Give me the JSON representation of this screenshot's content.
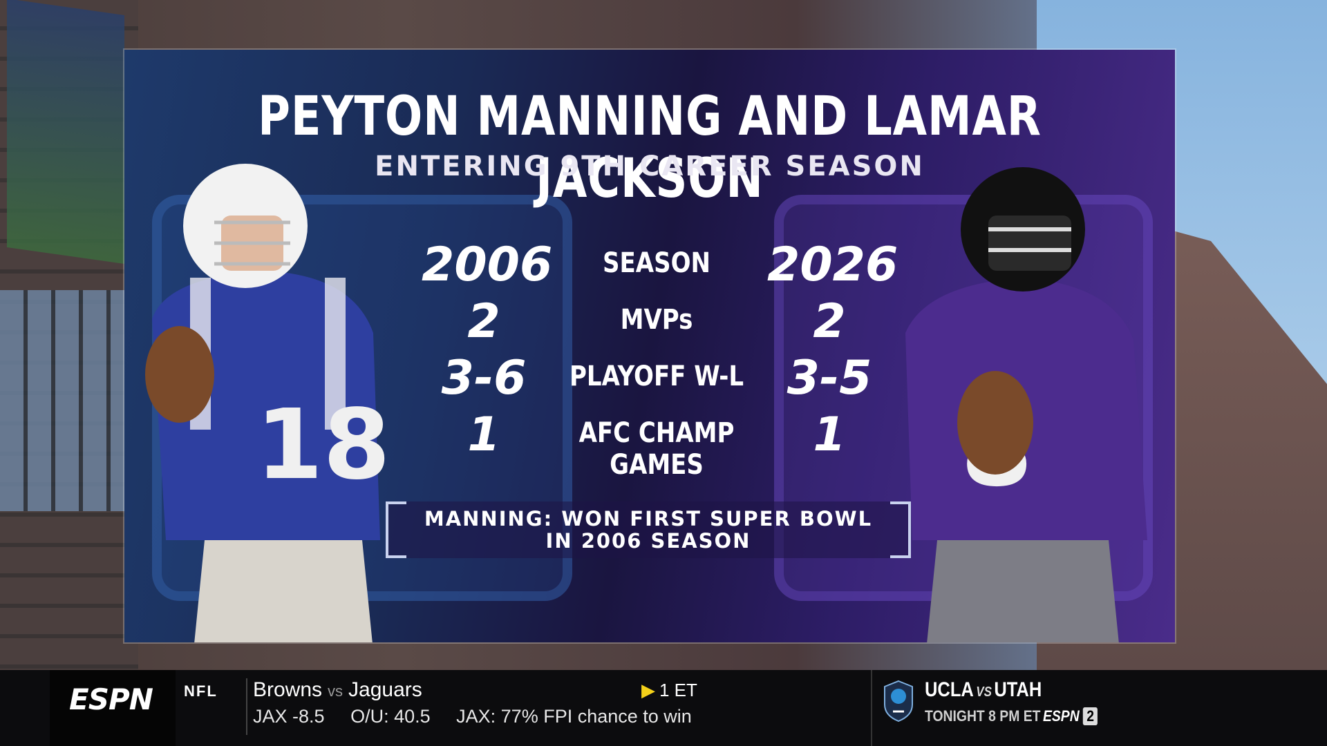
{
  "graphic": {
    "title": "PEYTON MANNING AND LAMAR JACKSON",
    "subtitle": "ENTERING 9TH CAREER SEASON",
    "rows": [
      {
        "left": "2006",
        "label": "SEASON",
        "right": "2026"
      },
      {
        "left": "2",
        "label": "MVPs",
        "right": "2"
      },
      {
        "left": "3-6",
        "label": "PLAYOFF W-L",
        "right": "3-5"
      },
      {
        "left": "1",
        "label": "AFC CHAMP GAMES",
        "right": "1"
      }
    ],
    "callout_line1": "MANNING: WON FIRST SUPER BOWL",
    "callout_line2": "IN 2006 SEASON",
    "left_player_number": "18",
    "right_player_number": "8",
    "colors": {
      "colts": "#2a3f9a",
      "ravens": "#4a2c8a",
      "accent": "#f4d11a"
    }
  },
  "ticker": {
    "network": "ESPN",
    "league": "NFL",
    "away_team": "Browns",
    "vs": "vs",
    "home_team": "Jaguars",
    "time": "1 ET",
    "spread": "JAX -8.5",
    "over_under": "O/U: 40.5",
    "fpi": "JAX: 77% FPI chance to win",
    "promo_team1": "UCLA",
    "promo_vs": "VS",
    "promo_team2": "UTAH",
    "promo_time": "TONIGHT 8 PM ET",
    "promo_network": "ESPN",
    "promo_badge": "2"
  }
}
